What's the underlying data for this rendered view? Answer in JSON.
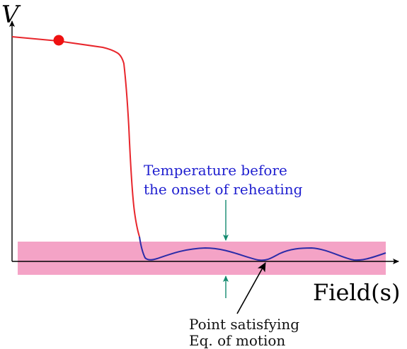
{
  "axes": {
    "y_label": "V",
    "x_label": "Field(s)"
  },
  "annotations": {
    "temperature_line1": "Temperature before",
    "temperature_line2": "the onset of reheating",
    "point_line1": "Point satisfying",
    "point_line2": "Eq. of motion"
  },
  "colors": {
    "potential_curve": "#e8262c",
    "oscillation_curve": "#2b2ba8",
    "band": "#f4a3c6",
    "temperature_arrows": "#138a6e",
    "temperature_text": "#2020d0",
    "marker": "#ee1111",
    "axes": "#000000",
    "text": "#111111"
  }
}
